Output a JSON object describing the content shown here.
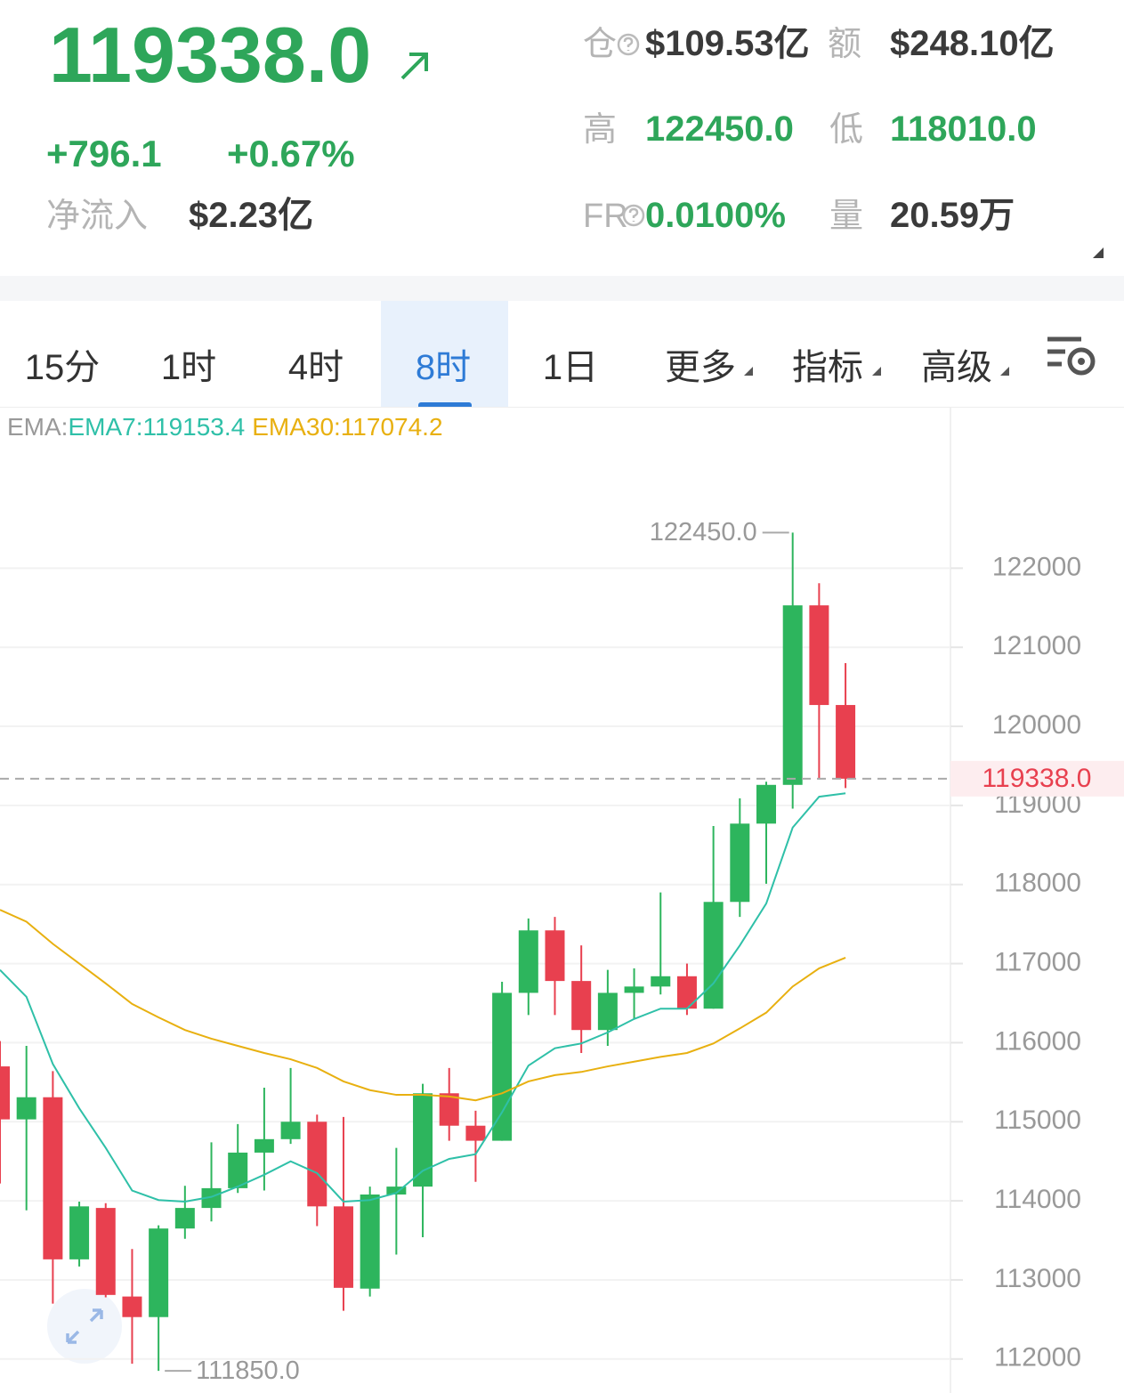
{
  "header": {
    "price": "119338.0",
    "change": "+796.1",
    "change_pct": "+0.67%",
    "net_inflow_label": "净流入",
    "net_inflow": "$2.23亿",
    "stats": [
      {
        "label": "仓",
        "value": "$109.53亿"
      },
      {
        "label": "额",
        "value": "$248.10亿"
      },
      {
        "label": "高",
        "value": "122450.0"
      },
      {
        "label": "低",
        "value": "118010.0"
      },
      {
        "label": "FR",
        "value": "0.0100%"
      },
      {
        "label": "量",
        "value": "20.59万"
      }
    ]
  },
  "tabs": [
    "15分",
    "1时",
    "4时",
    "8时",
    "1日",
    "更多",
    "指标",
    "高级"
  ],
  "active_tab": 3,
  "chart_data": {
    "type": "candlestick",
    "legend_prefix": "EMA:",
    "open": [
      115700,
      115030,
      115310,
      113260,
      113910,
      112790,
      112530,
      113650,
      113910,
      114160,
      114610,
      114780,
      115000,
      113930,
      112890,
      114080,
      114180,
      115360,
      114950,
      114760,
      116630,
      117420,
      116780,
      116160,
      116630,
      116710,
      116840,
      116430,
      117780,
      118770,
      119260,
      121530,
      120270
    ],
    "high": [
      116020,
      115960,
      115640,
      113990,
      113970,
      113390,
      113690,
      114190,
      114740,
      114970,
      115430,
      115680,
      115090,
      115060,
      114180,
      114670,
      115480,
      115680,
      115140,
      116770,
      117570,
      117590,
      117230,
      116920,
      116940,
      117900,
      117000,
      118740,
      119090,
      119300,
      122450,
      121810,
      120800
    ],
    "low": [
      114220,
      113880,
      112700,
      113170,
      112780,
      111940,
      111850,
      113520,
      113740,
      114100,
      114130,
      114720,
      113680,
      112610,
      112790,
      113320,
      113540,
      114760,
      114240,
      114760,
      116350,
      116350,
      115870,
      115960,
      116300,
      116610,
      116350,
      116430,
      117590,
      118010,
      118960,
      119330,
      119220
    ],
    "close": [
      115030,
      115310,
      113260,
      113930,
      112810,
      112530,
      113650,
      113910,
      114160,
      114610,
      114780,
      115000,
      113930,
      112900,
      114080,
      114180,
      115360,
      114950,
      114760,
      116630,
      117420,
      116780,
      116160,
      116630,
      116710,
      116840,
      116430,
      117780,
      118770,
      119260,
      121530,
      120270,
      119338
    ],
    "up_color": "#2db55d",
    "down_color": "#e8404f",
    "series": [
      {
        "legend_label": "EMA7:119153.4",
        "color": "#2fc0a8",
        "values": [
          116920,
          116580,
          115730,
          115170,
          114670,
          114130,
          114010,
          113990,
          114050,
          114180,
          114330,
          114500,
          114350,
          113990,
          114010,
          114100,
          114380,
          114530,
          114590,
          115120,
          115710,
          115930,
          115990,
          116130,
          116300,
          116430,
          116430,
          116750,
          117230,
          117760,
          118720,
          119110,
          119153.4
        ]
      },
      {
        "legend_label": "EMA30:117074.2",
        "color": "#e8b010",
        "values": [
          117680,
          117530,
          117250,
          117000,
          116750,
          116490,
          116320,
          116160,
          116050,
          115960,
          115870,
          115790,
          115680,
          115510,
          115400,
          115340,
          115340,
          115320,
          115270,
          115360,
          115510,
          115590,
          115630,
          115700,
          115760,
          115820,
          115870,
          115990,
          116180,
          116380,
          116710,
          116940,
          117074.2
        ]
      }
    ],
    "max_label": "122450.0",
    "min_label": "111850.0",
    "last_price_label": "119338.0",
    "ylim": [
      111570,
      124030
    ],
    "yticks": [
      112000,
      113000,
      114000,
      115000,
      116000,
      117000,
      118000,
      119000,
      120000,
      121000,
      122000
    ],
    "grid": true
  }
}
